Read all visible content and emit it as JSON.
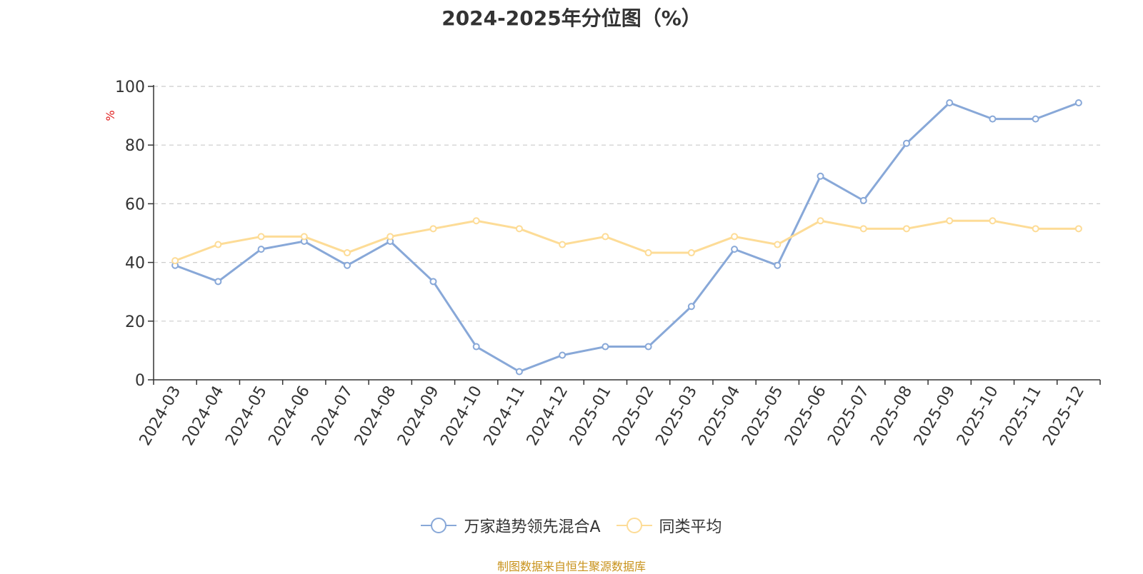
{
  "title": "2024-2025年分位图（%）",
  "source": "制图数据来自恒生聚源数据库",
  "chart_data": {
    "type": "line",
    "ylabel": "%",
    "ylim": [
      0,
      100
    ],
    "yticks": [
      0,
      20,
      40,
      60,
      80,
      100
    ],
    "grid": true,
    "legend_position": "bottom",
    "categories": [
      "2024-03",
      "2024-04",
      "2024-05",
      "2024-06",
      "2024-07",
      "2024-08",
      "2024-09",
      "2024-10",
      "2024-11",
      "2024-12",
      "2025-01",
      "2025-02",
      "2025-03",
      "2025-04",
      "2025-05",
      "2025-06",
      "2025-07",
      "2025-08",
      "2025-09",
      "2025-10",
      "2025-11",
      "2025-12"
    ],
    "series": [
      {
        "name": "万家趋势领先混合A",
        "color": "#88a8d8",
        "values": [
          39,
          33.5,
          44.5,
          47.2,
          39,
          47.2,
          33.5,
          11.3,
          2.8,
          8.4,
          11.3,
          11.3,
          25,
          44.5,
          39,
          69.4,
          61.1,
          80.6,
          94.4,
          88.9,
          88.9,
          94.4
        ]
      },
      {
        "name": "同类平均",
        "color": "#fddc97",
        "values": [
          40.6,
          46.1,
          48.8,
          48.8,
          43.3,
          48.8,
          51.5,
          54.2,
          51.5,
          46.1,
          48.8,
          43.3,
          43.3,
          48.8,
          46.1,
          54.2,
          51.5,
          51.5,
          54.2,
          54.2,
          51.5,
          51.5
        ]
      }
    ]
  }
}
